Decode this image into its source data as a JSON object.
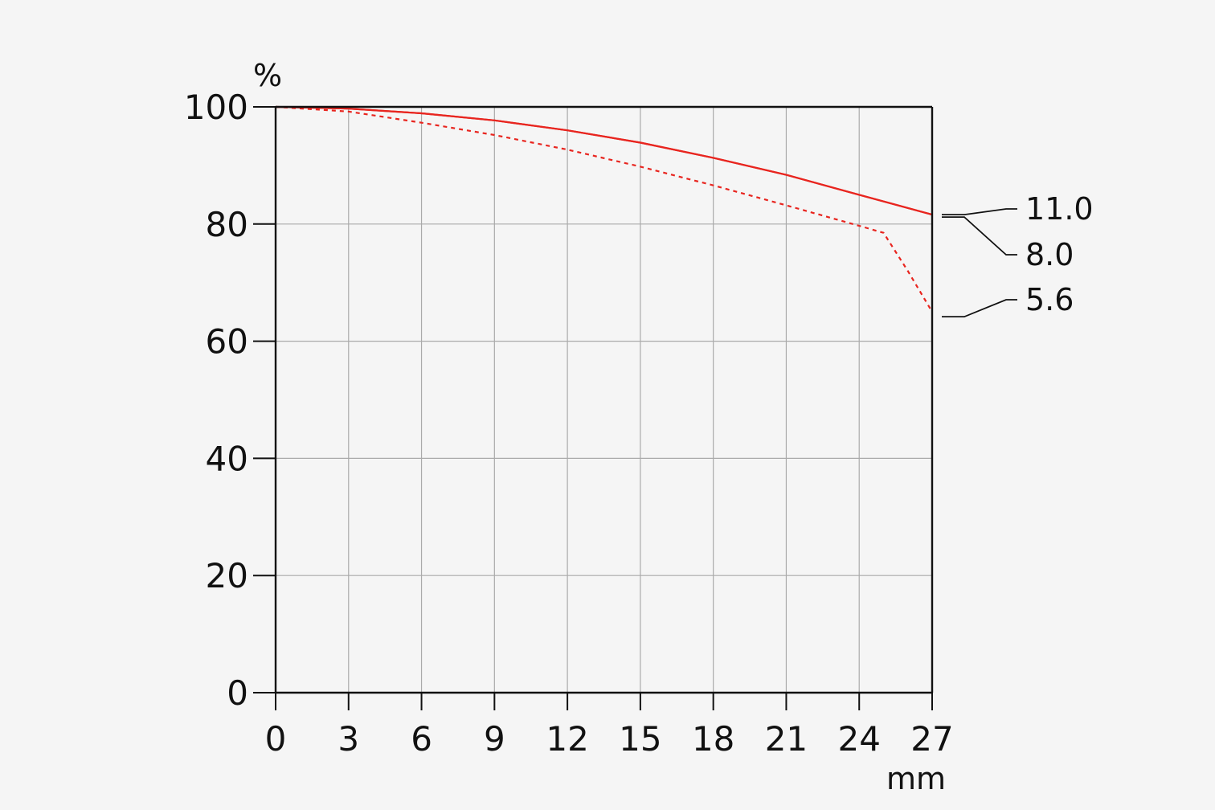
{
  "chart_data": {
    "type": "line",
    "title": "",
    "xlabel": "mm",
    "ylabel": "%",
    "xlim": [
      0,
      27
    ],
    "ylim": [
      0,
      100
    ],
    "x_ticks": [
      "0",
      "3",
      "6",
      "9",
      "12",
      "15",
      "18",
      "21",
      "24",
      "27"
    ],
    "y_ticks": [
      "0",
      "20",
      "40",
      "60",
      "80",
      "100"
    ],
    "grid": true,
    "legend_position": "right",
    "series": [
      {
        "name": "11.0",
        "color": "#e8251f",
        "style": "solid",
        "x": [
          0,
          3,
          6,
          9,
          12,
          15,
          18,
          21,
          24,
          27
        ],
        "y": [
          100,
          99.7,
          98.9,
          97.7,
          96.0,
          93.9,
          91.3,
          88.4,
          85.0,
          81.6
        ]
      },
      {
        "name": "8.0",
        "color": "#e8251f",
        "style": "solid",
        "x": [
          0,
          3,
          6,
          9,
          12,
          15,
          18,
          21,
          24,
          27
        ],
        "y": [
          100,
          99.7,
          98.9,
          97.7,
          96.0,
          93.9,
          91.3,
          88.4,
          85.0,
          81.6
        ]
      },
      {
        "name": "5.6",
        "color": "#e8251f",
        "style": "dashed",
        "x": [
          0,
          3,
          6,
          9,
          12,
          15,
          18,
          21,
          24,
          25,
          26,
          27
        ],
        "y": [
          100,
          99.2,
          97.3,
          95.2,
          92.7,
          89.8,
          86.6,
          83.2,
          79.7,
          78.5,
          72.0,
          65.0
        ]
      }
    ]
  }
}
